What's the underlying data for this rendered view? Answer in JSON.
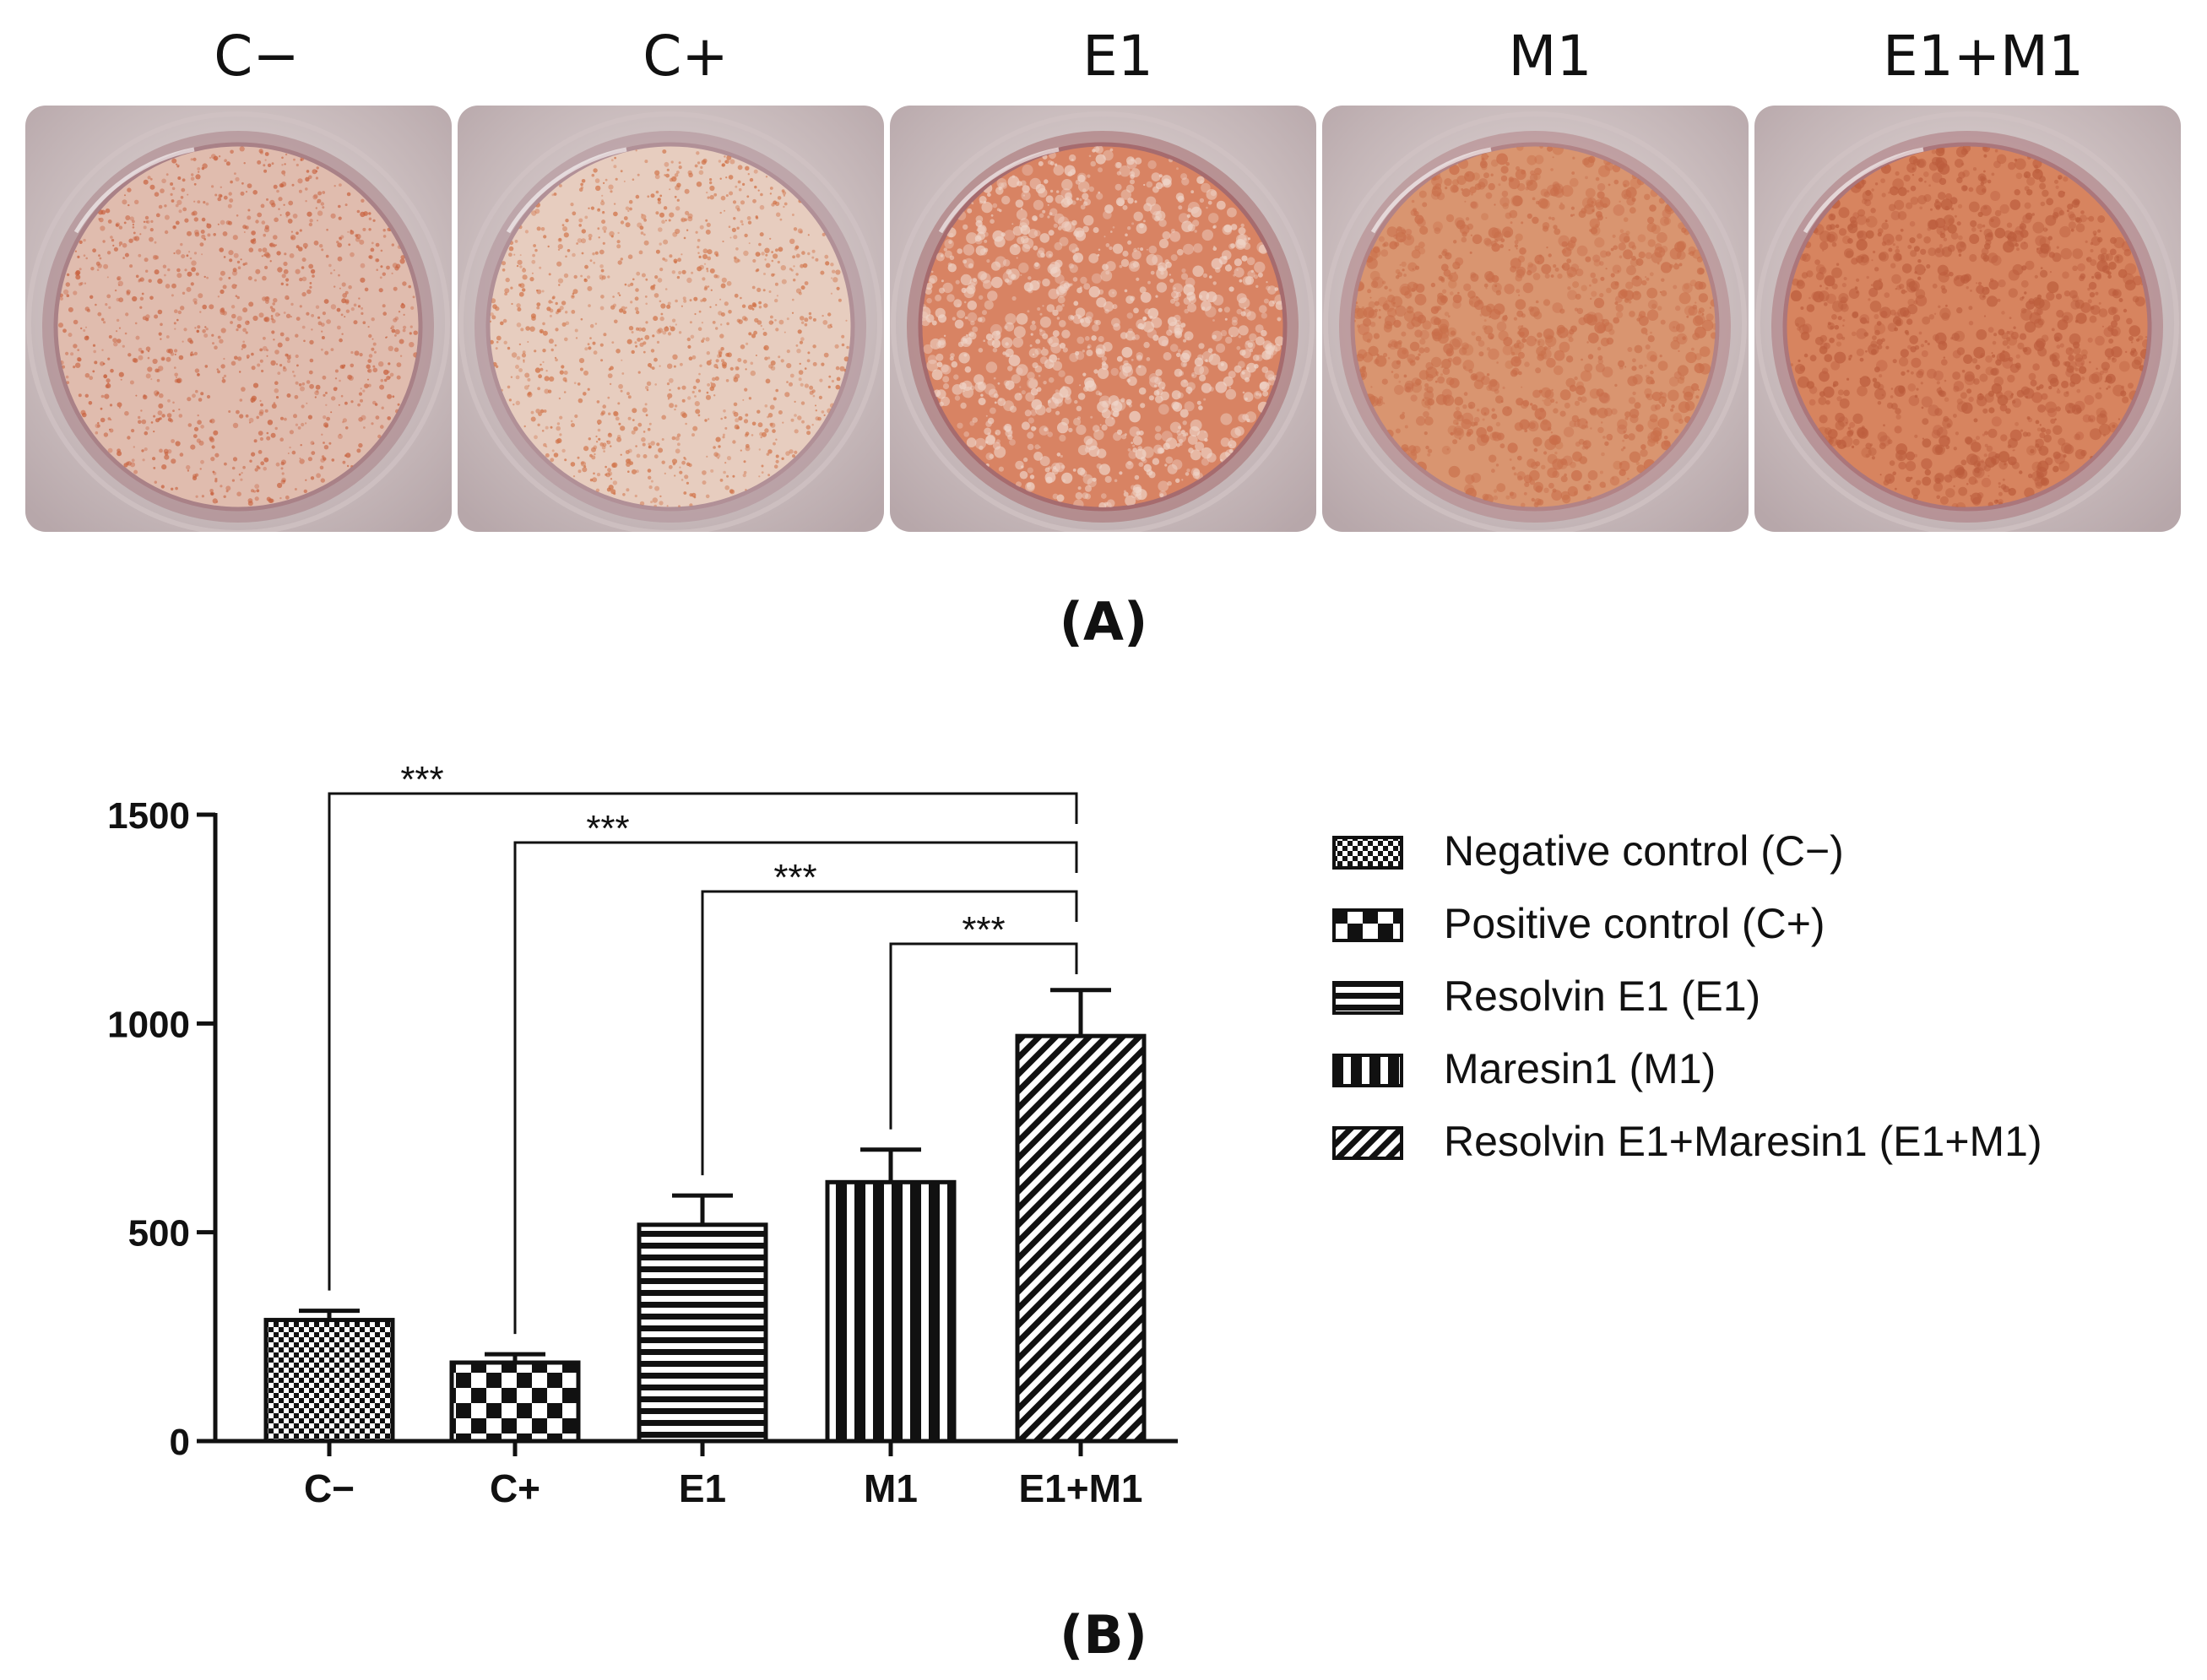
{
  "wells": [
    {
      "label": "C−",
      "tone": "#e0bcae",
      "speckle": "#c8623f",
      "ring": "#a98187"
    },
    {
      "label": "C+",
      "tone": "#e7cdbf",
      "speckle": "#d07045",
      "ring": "#b19097"
    },
    {
      "label": "E1",
      "tone": "#d88363",
      "speckle": "#efd4c8",
      "ring": "#a66b6e"
    },
    {
      "label": "M1",
      "tone": "#d99570",
      "speckle": "#c96e4a",
      "ring": "#b28386"
    },
    {
      "label": "E1+M1",
      "tone": "#d7845f",
      "speckle": "#bc5d3d",
      "ring": "#ab767b"
    }
  ],
  "panel_labels": {
    "a": "(A)",
    "b": "(B)"
  },
  "chart_data": {
    "type": "bar",
    "categories": [
      "C−",
      "C+",
      "E1",
      "M1",
      "E1+M1"
    ],
    "values": [
      290,
      188,
      518,
      620,
      970
    ],
    "errors": [
      22,
      20,
      70,
      78,
      110
    ],
    "patterns": [
      "fine-check",
      "check",
      "horizontal",
      "vertical",
      "diagonal"
    ],
    "ylim": [
      0,
      1500
    ],
    "yticks": [
      0,
      500,
      1000,
      1500
    ],
    "ytick_labels": [
      "0",
      "500",
      "1000",
      "1500"
    ],
    "title": "",
    "xlabel": "",
    "ylabel": "",
    "significance": [
      {
        "from": 0,
        "to": 4,
        "label": "***"
      },
      {
        "from": 1,
        "to": 4,
        "label": "***"
      },
      {
        "from": 2,
        "to": 4,
        "label": "***"
      },
      {
        "from": 3,
        "to": 4,
        "label": "***"
      }
    ],
    "legend": [
      {
        "label": "Negative control (C−)",
        "pattern": "fine-check"
      },
      {
        "label": "Positive control (C+)",
        "pattern": "check"
      },
      {
        "label": "Resolvin E1 (E1)",
        "pattern": "horizontal"
      },
      {
        "label": "Maresin1 (M1)",
        "pattern": "vertical"
      },
      {
        "label": "Resolvin E1+Maresin1 (E1+M1)",
        "pattern": "diagonal"
      }
    ]
  }
}
